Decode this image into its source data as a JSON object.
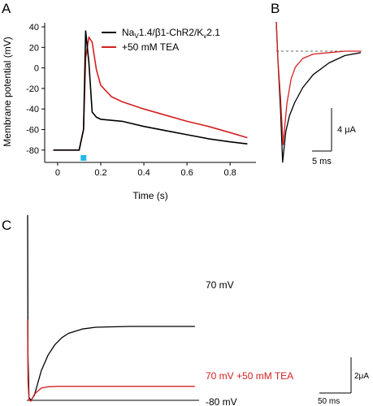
{
  "colors": {
    "control": "#000000",
    "tea": "#d42020",
    "stimulus": "#22b8e8",
    "ink": "#000000"
  },
  "chart_data": [
    {
      "panel": "A",
      "type": "line",
      "xlabel": "Time (s)",
      "ylabel": "Membrane potential (mV)",
      "xlim": [
        -0.06,
        0.92
      ],
      "ylim": [
        -92,
        44
      ],
      "xticks": [
        0,
        0.2,
        0.4,
        0.6,
        0.8
      ],
      "xtick_labels": [
        "0",
        "0.2",
        "0.4",
        "0.6",
        "0.8"
      ],
      "yticks": [
        40,
        20,
        0,
        -20,
        -40,
        -60,
        -80
      ],
      "ytick_labels": [
        "40",
        "20",
        "0",
        "-20",
        "-40",
        "-60",
        "-80"
      ],
      "legend_position": "top-right",
      "legend": [
        {
          "label_parts": [
            "Na",
            "V",
            "1.4/β1-ChR2/K",
            "v",
            "2.1"
          ],
          "series": "control"
        },
        {
          "label": "+50 mM TEA",
          "series": "tea"
        }
      ],
      "stimulus": {
        "x": 0.12
      },
      "series": [
        {
          "id": "control",
          "x": [
            -0.02,
            0.1,
            0.12,
            0.13,
            0.145,
            0.16,
            0.18,
            0.2,
            0.3,
            0.4,
            0.5,
            0.6,
            0.7,
            0.8,
            0.88
          ],
          "y": [
            -80,
            -80,
            -60,
            36,
            5,
            -43,
            -48,
            -50,
            -52,
            -57,
            -61,
            -65,
            -69,
            -72,
            -74
          ]
        },
        {
          "id": "tea",
          "x": [
            -0.02,
            0.1,
            0.12,
            0.13,
            0.145,
            0.16,
            0.18,
            0.2,
            0.25,
            0.3,
            0.4,
            0.5,
            0.6,
            0.7,
            0.8,
            0.88
          ],
          "y": [
            -80,
            -80,
            -60,
            10,
            30,
            25,
            -2,
            -17,
            -28,
            -33,
            -40,
            -46,
            -52,
            -57,
            -63,
            -68
          ]
        }
      ]
    },
    {
      "panel": "B",
      "type": "line",
      "units": "time (ms) vs current (μA)",
      "baseline_dashed": true,
      "series": [
        {
          "id": "control",
          "x": [
            0,
            0.3,
            0.8,
            1.2,
            1.8,
            2.5,
            3.5,
            5,
            7,
            10,
            13,
            16
          ],
          "y": [
            2,
            -0.5,
            -4,
            -7.6,
            -5.5,
            -4.4,
            -3.5,
            -2.5,
            -1.6,
            -0.8,
            -0.3,
            -0.1
          ]
        },
        {
          "id": "tea",
          "x": [
            0,
            0.3,
            0.8,
            1.3,
            2,
            2.8,
            3.6,
            5,
            7,
            10,
            13,
            16
          ],
          "y": [
            2,
            -0.5,
            -3.2,
            -6.4,
            -3.6,
            -1.9,
            -1.1,
            -0.5,
            -0.2,
            -0.1,
            0,
            0
          ]
        }
      ],
      "scalebar": {
        "x_label": "5 ms",
        "y_label": "4 μA",
        "x_value": 5,
        "y_value": 4
      }
    },
    {
      "panel": "C",
      "type": "line",
      "units": "time (ms) vs current (μA)",
      "series": [
        {
          "id": "control",
          "label": "70 mV",
          "x": [
            0,
            0.5,
            2,
            5,
            10,
            20,
            30,
            40,
            50,
            60,
            80,
            100,
            150,
            200,
            245
          ],
          "y": [
            20,
            4,
            -1,
            -1.3,
            -0.7,
            2.1,
            3.9,
            5.1,
            5.9,
            6.4,
            6.9,
            7.1,
            7.2,
            7.2,
            7.2
          ]
        },
        {
          "id": "tea",
          "label": "70 mV +50 mM TEA",
          "x": [
            0,
            0.5,
            2,
            5,
            10,
            20,
            30,
            45,
            60,
            100,
            150,
            200,
            245
          ],
          "y": [
            8,
            1,
            -1.3,
            -1.4,
            -0.6,
            0.1,
            0.25,
            0.3,
            0.3,
            0.3,
            0.3,
            0.3,
            0.3
          ]
        }
      ],
      "holding_label": "-80 mV",
      "scalebar": {
        "x_label": "50 ms",
        "y_label": "2μA",
        "x_value": 50,
        "y_value": 2
      }
    }
  ],
  "panels": {
    "a": "A",
    "b": "B",
    "c": "C"
  }
}
